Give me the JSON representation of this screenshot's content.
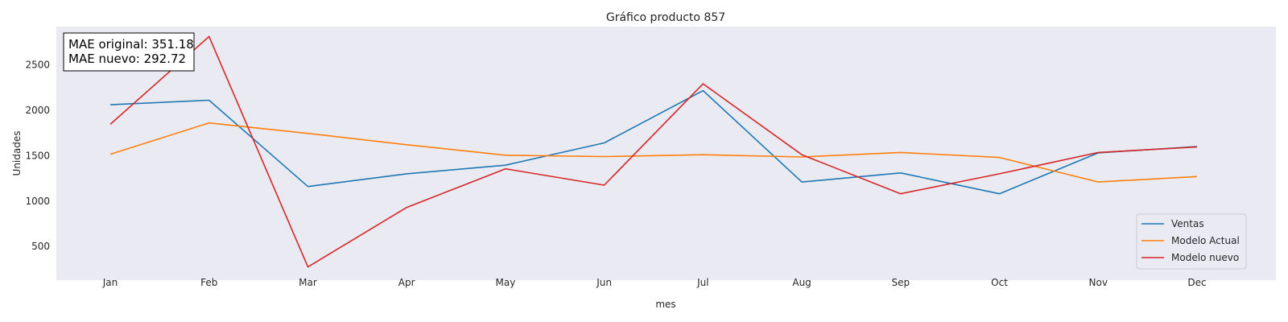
{
  "chart_data": {
    "type": "line",
    "title": "Gráfico producto 857",
    "xlabel": "mes",
    "ylabel": "Unidades",
    "categories": [
      "Jan",
      "Feb",
      "Mar",
      "Apr",
      "May",
      "Jun",
      "Jul",
      "Aug",
      "Sep",
      "Oct",
      "Nov",
      "Dec"
    ],
    "yticks": [
      500,
      1000,
      1500,
      2000,
      2500
    ],
    "ylim": [
      130,
      2920
    ],
    "grid": false,
    "legend_position": "lower-right",
    "series": [
      {
        "name": "Ventas",
        "color": "#1f77b4",
        "values": [
          2060,
          2110,
          1160,
          1300,
          1395,
          1640,
          2215,
          1210,
          1310,
          1080,
          1530,
          1600
        ]
      },
      {
        "name": "Modelo Actual",
        "color": "#ff7f0e",
        "values": [
          1515,
          1860,
          1745,
          1620,
          1505,
          1490,
          1510,
          1485,
          1535,
          1480,
          1210,
          1270
        ]
      },
      {
        "name": "Modelo nuevo",
        "color": "#d62728",
        "values": [
          1845,
          2810,
          275,
          930,
          1355,
          1175,
          2290,
          1510,
          1080,
          1300,
          1535,
          1595
        ]
      }
    ],
    "annotation": {
      "line1": "MAE original: 351.18",
      "line2": "MAE nuevo: 292.72"
    }
  }
}
